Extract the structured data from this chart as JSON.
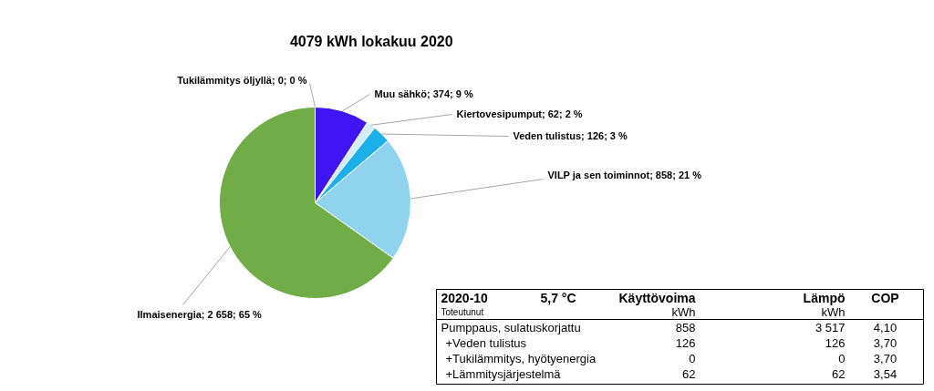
{
  "chart_data": {
    "type": "pie",
    "title": "4079  kWh lokakuu 2020",
    "categories": [
      "Tukilämmitys öljyllä",
      "Muu sähkö",
      "Kiertovesipumput",
      "Veden tulistus",
      "VILP ja sen toiminnot",
      "Ilmaisenergia"
    ],
    "values": [
      0,
      374,
      62,
      126,
      858,
      2658
    ],
    "colors": [
      null,
      "#3f14f5",
      "#d3ecf9",
      "#1cb0ea",
      "#8fd3ef",
      "#70ad47"
    ],
    "value_labels": [
      "; 0; 0 %",
      "; 374; 9 %",
      "; 62; 2 %",
      "; 126; 3 %",
      "; 858; 21 %",
      "; 2 658; 65 %"
    ],
    "annotations": [
      "2020-10",
      "5,7 °C",
      "Käyttövoima",
      "Lämpö",
      "COP",
      "Toteutunut",
      "kWh",
      "kWh",
      "Pumppaus, sulatuskorjattu",
      "858",
      "3 517",
      "4,10",
      "+Veden tulistus",
      "126",
      "126",
      "3,70",
      "+Tukilämmitys, hyötyenergia",
      "0",
      "0",
      "3,70",
      "+Lämmitysjärjestelmä",
      "62",
      "62",
      "3,54"
    ]
  }
}
